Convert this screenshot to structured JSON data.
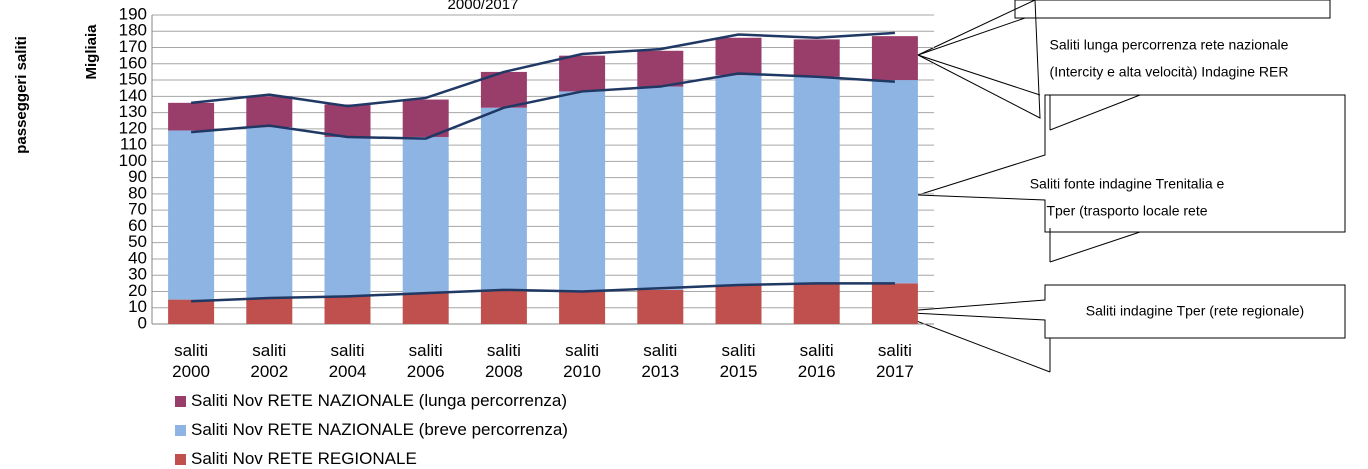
{
  "chart_data": {
    "type": "stacked-bar",
    "title": "2000/2017",
    "y_label": "passeggeri saliti",
    "y_unit": "Migliaia",
    "categories": [
      "saliti 2000",
      "saliti 2002",
      "saliti 2004",
      "saliti 2006",
      "saliti 2008",
      "saliti 2010",
      "saliti 2013",
      "saliti 2015",
      "saliti 2016",
      "saliti 2017"
    ],
    "series": [
      {
        "name": "Saliti Nov RETE NAZIONALE (lunga percorrenza)",
        "color": "#993d6b",
        "values": [
          17,
          19,
          20,
          23,
          22,
          22,
          22,
          23,
          23,
          27
        ]
      },
      {
        "name": "Saliti Nov RETE NAZIONALE (breve percorrenza)",
        "color": "#8eb4e3",
        "values": [
          104,
          105,
          98,
          96,
          112,
          123,
          125,
          129,
          127,
          125
        ]
      },
      {
        "name": "Saliti Nov RETE REGIONALE",
        "color": "#c0504d",
        "values": [
          15,
          16,
          17,
          19,
          21,
          20,
          21,
          24,
          25,
          25
        ]
      }
    ],
    "lines": [
      {
        "color": "#1f3864",
        "values": [
          14,
          16,
          17,
          19,
          21,
          20,
          22,
          24,
          25,
          25
        ]
      },
      {
        "color": "#1f3864",
        "values": [
          118,
          122,
          115,
          114,
          133,
          143,
          146,
          154,
          152,
          149
        ]
      },
      {
        "color": "#1f3864",
        "values": [
          136,
          141,
          134,
          139,
          155,
          166,
          169,
          178,
          176,
          179
        ]
      }
    ],
    "ylim": [
      0,
      190
    ],
    "yticks": [
      0,
      10,
      20,
      30,
      40,
      50,
      60,
      70,
      80,
      90,
      100,
      110,
      120,
      130,
      140,
      150,
      160,
      170,
      180,
      190
    ],
    "grid": true,
    "annotations": [
      {
        "lines": [
          "Saliti lunga percorrenza rete nazionale",
          "(Intercity e alta velocità) Indagine RER"
        ]
      },
      {
        "lines": [
          "Saliti fonte indagine Trenitalia  e",
          "Tper     (trasporto locale rete"
        ]
      },
      {
        "lines": [
          "Saliti indagine Tper (rete regionale)"
        ]
      }
    ]
  }
}
